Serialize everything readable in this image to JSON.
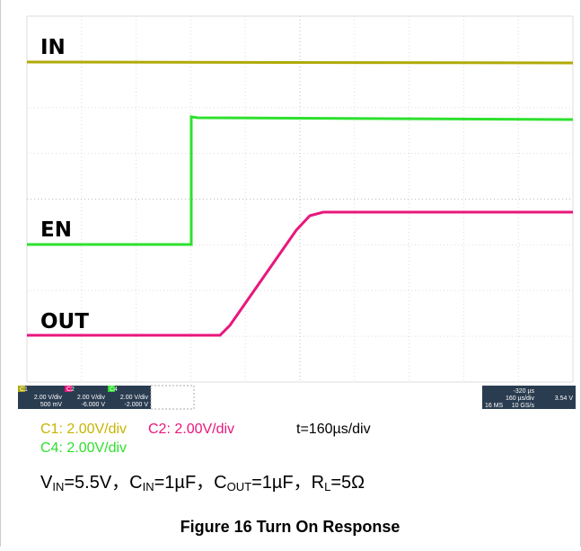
{
  "trace_labels": [
    "IN",
    "EN",
    "OUT"
  ],
  "status": {
    "ch1": [
      "C1",
      "2.00 V/div",
      "500 mV"
    ],
    "ch2": [
      "C2",
      "2.00 V/div",
      "-6.000 V"
    ],
    "ch4": [
      "C4",
      "2.00 V/div",
      "-2.000 V"
    ],
    "timebase": [
      "-320 µs",
      "160 µs/div",
      "16 MS",
      "10 GS/s",
      "3.54 V"
    ]
  },
  "captions": {
    "c1": "C1: 2.00V/div",
    "c2": "C2: 2.00V/div",
    "time": "t=160µs/div",
    "c4": "C4: 2.00V/div"
  },
  "conditions": [
    {
      "symbol": "V",
      "sub": "IN",
      "value": "=5.5V，"
    },
    {
      "symbol": "C",
      "sub": "IN",
      "value": "=1µF，"
    },
    {
      "symbol": "C",
      "sub": "OUT",
      "value": "=1µF，"
    },
    {
      "symbol": "R",
      "sub": "L",
      "value": "=5Ω"
    }
  ],
  "figure_title": "Figure 16   Turn On Response"
}
